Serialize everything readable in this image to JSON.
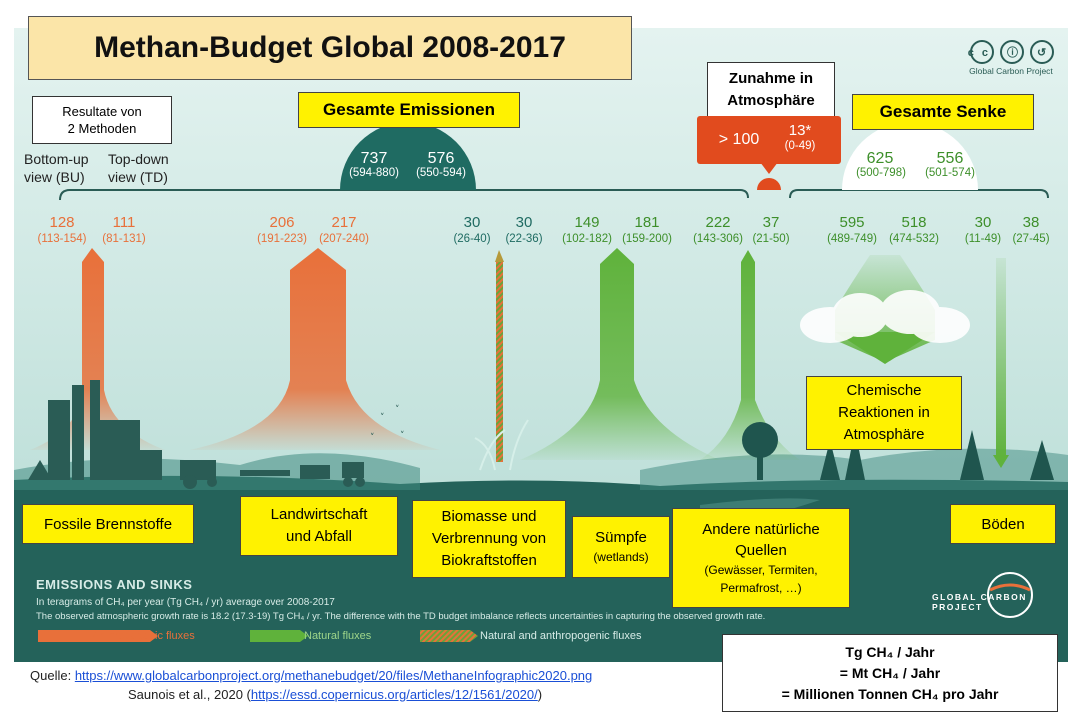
{
  "title": "Methan-Budget Global 2008-2017",
  "logo": {
    "cc_symbols": "cc ⓘ ↺",
    "text": "Global Carbon Project"
  },
  "methods_box": {
    "line1": "Resultate von",
    "line2": "2 Methoden"
  },
  "view_labels": {
    "bu": "Bottom-up view (BU)",
    "td": "Top-down view  (TD)"
  },
  "total_emissions": {
    "label": "Gesamte Emissionen",
    "bu": "737",
    "bu_range": "(594-880)",
    "td": "576",
    "td_range": "(550-594)"
  },
  "atmosphere_increase": {
    "label": "Zunahme in Atmosphäre",
    "bu": "> 100",
    "td": "13*",
    "td_range": "(0-49)"
  },
  "total_sink": {
    "label": "Gesamte Senke",
    "bu": "625",
    "bu_range": "(500-798)",
    "td": "556",
    "td_range": "(501-574)"
  },
  "fluxes": [
    {
      "bu": "128",
      "bu_range": "(113-154)",
      "td": "111",
      "td_range": "(81-131)"
    },
    {
      "bu": "206",
      "bu_range": "(191-223)",
      "td": "217",
      "td_range": "(207-240)"
    },
    {
      "bu": "30",
      "bu_range": "(26-40)",
      "td": "30",
      "td_range": "(22-36)"
    },
    {
      "bu": "149",
      "bu_range": "(102-182)",
      "td": "181",
      "td_range": "(159-200)"
    },
    {
      "bu": "222",
      "bu_range": "(143-306)",
      "td": "37",
      "td_range": "(21-50)"
    },
    {
      "bu": "595",
      "bu_range": "(489-749)",
      "td": "518",
      "td_range": "(474-532)"
    },
    {
      "bu": "30",
      "bu_range": "(11-49)",
      "td": "38",
      "td_range": "(27-45)"
    }
  ],
  "categories": {
    "fossil": "Fossile Brennstoffe",
    "agri_1": "Landwirtschaft",
    "agri_2": "und Abfall",
    "biomass_1": "Biomasse und",
    "biomass_2": "Verbrennung von",
    "biomass_3": "Biokraftstoffen",
    "wetlands_1": "Sümpfe",
    "wetlands_2": "(wetlands)",
    "other_1": "Andere natürliche",
    "other_2": "Quellen",
    "other_3": "(Gewässer, Termiten,",
    "other_4": "Permafrost, …)",
    "chem_1": "Chemische",
    "chem_2": "Reaktionen in",
    "chem_3": "Atmosphäre",
    "soils": "Böden"
  },
  "legend": {
    "heading": "EMISSIONS AND SINKS",
    "line1": "In teragrams of CH₄ per year (Tg CH₄ / yr) average over 2008-2017",
    "line2": "The observed atmospheric growth rate is 18.2 (17.3-19) Tg CH₄ / yr. The difference with the TD budget imbalance reflects uncertainties in capturing the observed growth rate.",
    "anthropogenic": "Anthropogenic fluxes",
    "natural": "Natural fluxes",
    "mixed": "Natural and anthropogenic  fluxes"
  },
  "gcp_logo": "GLOBAL CARBON PROJECT",
  "units_box": {
    "line1": "Tg CH₄ / Jahr",
    "line2": "= Mt CH₄ / Jahr",
    "line3": "= Millionen Tonnen CH₄ pro Jahr"
  },
  "source": {
    "label": "Quelle: ",
    "url": "https://www.globalcarbonproject.org/methanebudget/20/files/MethaneInfographic2020.png",
    "citation": "Saunois et al., 2020 (",
    "citation_url": "https://essd.copernicus.org/articles/12/1561/2020/",
    "citation_end": ")"
  },
  "colors": {
    "sky": "#cfe8e4",
    "ground": "#24625a",
    "anthro": "#e8703a",
    "natural": "#5fb23b",
    "mixed": "#b59a3a",
    "dark_teal": "#1f6b62",
    "red": "#e14b1e",
    "yellow": "#fff200"
  }
}
